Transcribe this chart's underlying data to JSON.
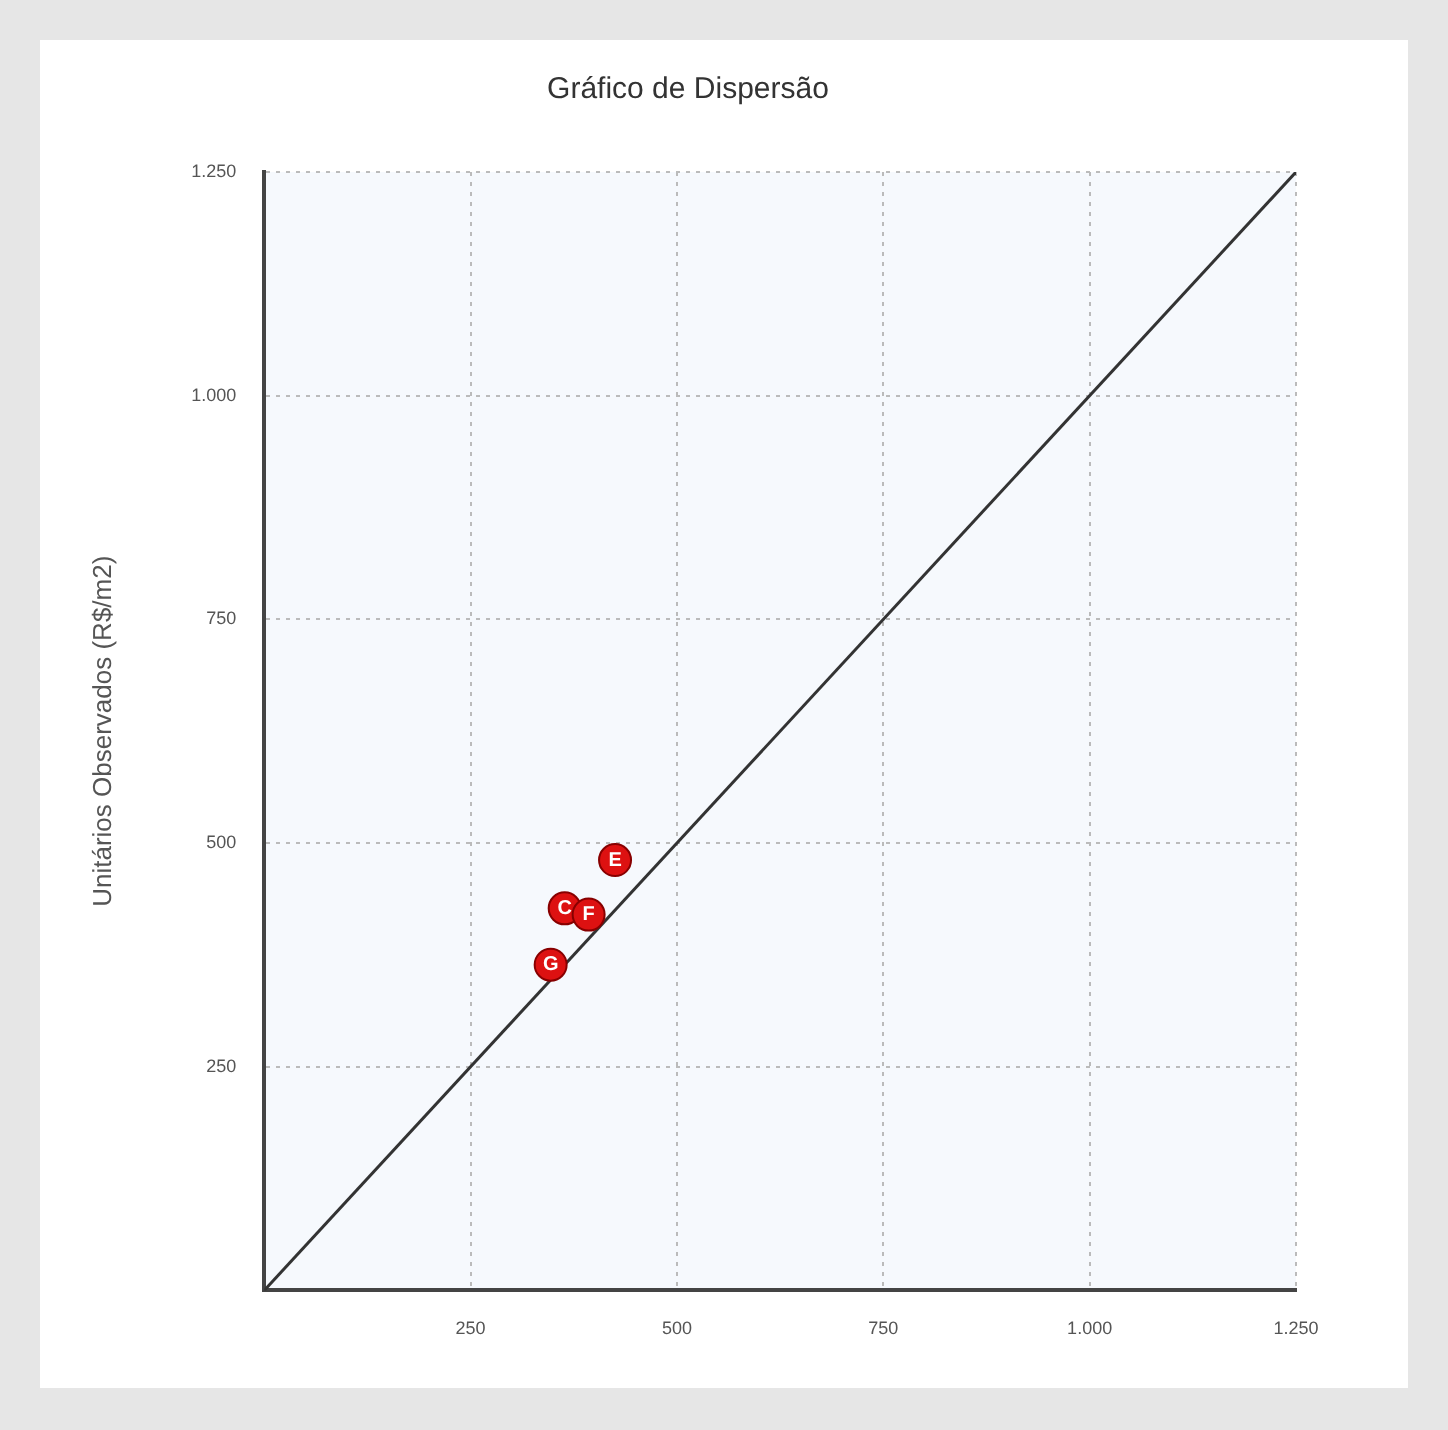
{
  "chart_data": {
    "type": "scatter",
    "title": "Gráfico de Dispersão",
    "ylabel": "Unitários Observados (R$/m2)",
    "series": [
      {
        "color": "#dd1111",
        "marker": "circle",
        "x": [
          364,
          425,
          393,
          347
        ],
        "values": [
          427,
          481,
          420,
          364
        ]
      },
      {
        "type": "line",
        "color": "#333333",
        "marker": "none",
        "x": [
          0,
          1250
        ],
        "values": [
          0,
          1250
        ]
      }
    ],
    "annotations": [
      {
        "text": "C",
        "x": 364,
        "y": 427
      },
      {
        "text": "E",
        "x": 425,
        "y": 481
      },
      {
        "text": "F",
        "x": 393,
        "y": 420
      },
      {
        "text": "G",
        "x": 347,
        "y": 364
      }
    ],
    "xlim": [
      0,
      1250
    ],
    "ylim": [
      0,
      1250
    ],
    "xticks": [
      {
        "value": 250,
        "label": "250"
      },
      {
        "value": 500,
        "label": "500"
      },
      {
        "value": 750,
        "label": "750"
      },
      {
        "value": 1000,
        "label": "1.000"
      },
      {
        "value": 1250,
        "label": "1.250"
      }
    ],
    "yticks": [
      {
        "value": 250,
        "label": "250"
      },
      {
        "value": 500,
        "label": "500"
      },
      {
        "value": 750,
        "label": "750"
      },
      {
        "value": 1000,
        "label": "1.000"
      },
      {
        "value": 1250,
        "label": "1.250"
      }
    ],
    "grid": true,
    "legend": false
  }
}
